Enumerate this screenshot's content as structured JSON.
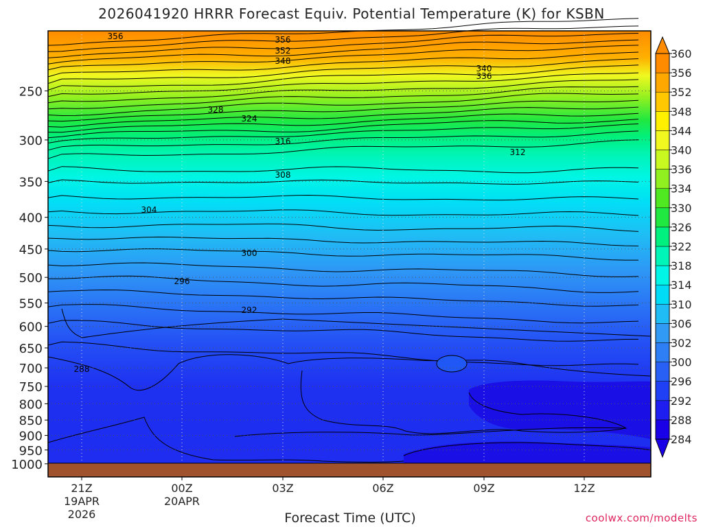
{
  "chart_data": {
    "type": "heatmap",
    "title": "2026041920 HRRR Forecast Equiv. Potential Temperature (K) for KSBN",
    "xlabel": "Forecast Time (UTC)",
    "ylabel": "",
    "y_scale": "log-pressure (inverted)",
    "ylim": [
      1050,
      200
    ],
    "y_ticks": [
      250,
      300,
      350,
      400,
      450,
      500,
      550,
      600,
      650,
      700,
      750,
      800,
      850,
      900,
      950,
      1000
    ],
    "y_tick_labels": [
      "250",
      "300",
      "350",
      "400",
      "450",
      "500",
      "550",
      "600",
      "650",
      "700",
      "750",
      "800",
      "850",
      "900",
      "950",
      "1000"
    ],
    "x_ticks": [
      {
        "label": "21Z",
        "sub1": "19APR",
        "sub2": "2026"
      },
      {
        "label": "00Z",
        "sub1": "20APR",
        "sub2": ""
      },
      {
        "label": "03Z",
        "sub1": "",
        "sub2": ""
      },
      {
        "label": "06Z",
        "sub1": "",
        "sub2": ""
      },
      {
        "label": "09Z",
        "sub1": "",
        "sub2": ""
      },
      {
        "label": "12Z",
        "sub1": "",
        "sub2": ""
      }
    ],
    "colorbar_levels": [
      284,
      288,
      292,
      296,
      300,
      302,
      306,
      310,
      314,
      318,
      322,
      326,
      330,
      334,
      336,
      340,
      344,
      348,
      352,
      356,
      360
    ],
    "colorbar_colors": [
      "#1a00e6",
      "#1e1ef0",
      "#2040f5",
      "#2860f5",
      "#2e7ef5",
      "#309af5",
      "#20bcf5",
      "#00dcf5",
      "#00f5e6",
      "#00f5b8",
      "#00f080",
      "#20e840",
      "#50e820",
      "#90f020",
      "#c8f820",
      "#f0f820",
      "#fff000",
      "#ffc800",
      "#ffa800",
      "#ff8c00"
    ],
    "contour_labels": [
      {
        "text": "356"
      },
      {
        "text": "356"
      },
      {
        "text": "352"
      },
      {
        "text": "348"
      },
      {
        "text": "340"
      },
      {
        "text": "336"
      },
      {
        "text": "328"
      },
      {
        "text": "324"
      },
      {
        "text": "316"
      },
      {
        "text": "312"
      },
      {
        "text": "308"
      },
      {
        "text": "304"
      },
      {
        "text": "300"
      },
      {
        "text": "296"
      },
      {
        "text": "292"
      },
      {
        "text": "288"
      }
    ]
  },
  "credit": "coolwx.com/modelts"
}
